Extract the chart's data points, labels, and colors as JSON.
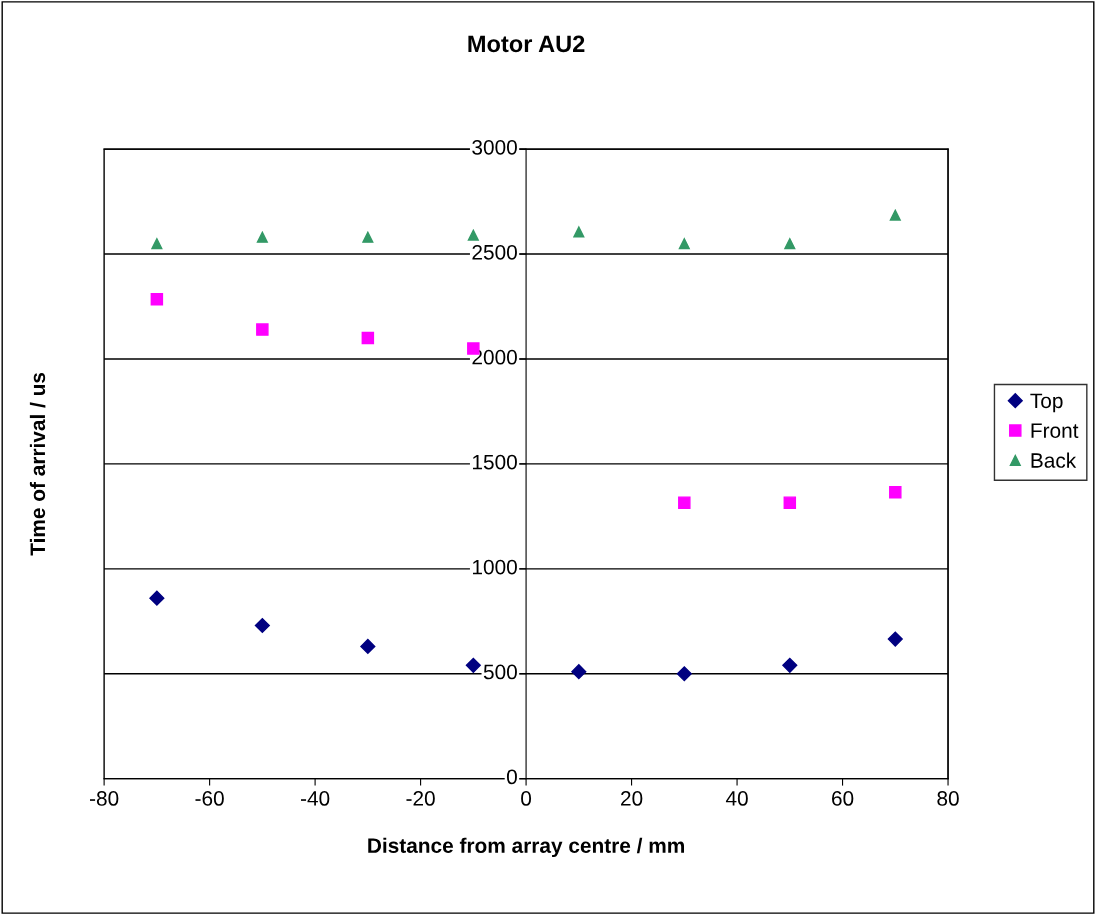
{
  "chart_data": {
    "type": "scatter",
    "title": "Motor AU2",
    "xlabel": "Distance from array centre / mm",
    "ylabel": "Time of arrival / us",
    "x": [
      -70,
      -50,
      -30,
      -10,
      10,
      30,
      50,
      70
    ],
    "series": [
      {
        "name": "Top",
        "color": "#000080",
        "marker": "diamond",
        "values": [
          860,
          730,
          630,
          540,
          510,
          500,
          540,
          665
        ]
      },
      {
        "name": "Front",
        "color": "#ff00ff",
        "marker": "square",
        "values": [
          2285,
          2140,
          2100,
          2050,
          null,
          1315,
          1315,
          1365
        ]
      },
      {
        "name": "Back",
        "color": "#339966",
        "marker": "triangle",
        "values": [
          2550,
          2580,
          2580,
          2590,
          2605,
          2550,
          2550,
          2685
        ]
      }
    ],
    "xlim": [
      -80,
      80
    ],
    "xticks": [
      -80,
      -60,
      -40,
      -20,
      0,
      20,
      40,
      60,
      80
    ],
    "ylim": [
      0,
      3000
    ],
    "yticks": [
      0,
      500,
      1000,
      1500,
      2000,
      2500,
      3000
    ],
    "grid": "y",
    "legend": "right"
  }
}
